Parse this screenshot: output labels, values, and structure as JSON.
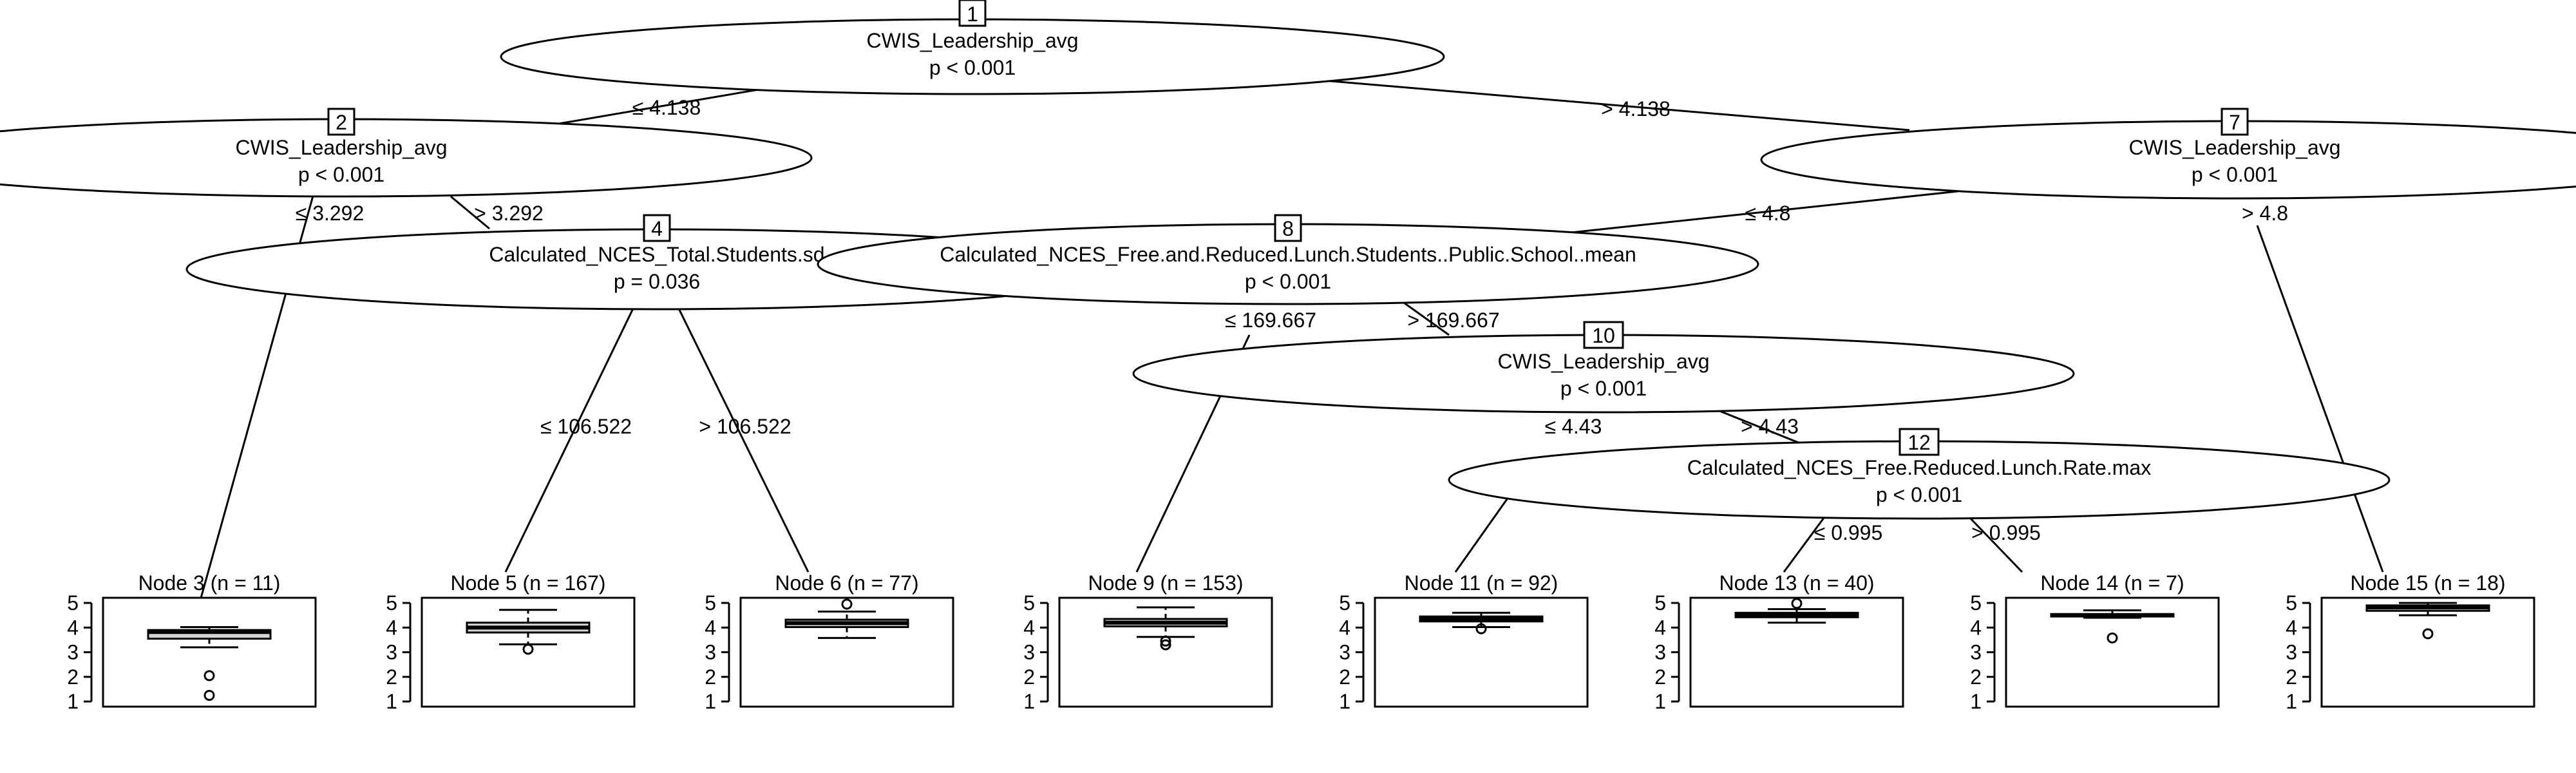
{
  "tree": {
    "nodes": [
      {
        "id": "1",
        "variable": "CWIS_Leadership_avg",
        "pvalue": "p < 0.001"
      },
      {
        "id": "2",
        "variable": "CWIS_Leadership_avg",
        "pvalue": "p < 0.001"
      },
      {
        "id": "4",
        "variable": "Calculated_NCES_Total.Students.sd",
        "pvalue": "p = 0.036"
      },
      {
        "id": "7",
        "variable": "CWIS_Leadership_avg",
        "pvalue": "p < 0.001"
      },
      {
        "id": "8",
        "variable": "Calculated_NCES_Free.and.Reduced.Lunch.Students..Public.School..mean",
        "pvalue": "p < 0.001"
      },
      {
        "id": "10",
        "variable": "CWIS_Leadership_avg",
        "pvalue": "p < 0.001"
      },
      {
        "id": "12",
        "variable": "Calculated_NCES_Free.Reduced.Lunch.Rate.max",
        "pvalue": "p < 0.001"
      }
    ],
    "edges": [
      {
        "from": "1",
        "to": "2",
        "label": "≤ 4.138"
      },
      {
        "from": "1",
        "to": "7",
        "label": "> 4.138"
      },
      {
        "from": "2",
        "to": "3",
        "label": "≤ 3.292"
      },
      {
        "from": "2",
        "to": "4",
        "label": "> 3.292"
      },
      {
        "from": "4",
        "to": "5",
        "label": "≤ 106.522"
      },
      {
        "from": "4",
        "to": "6",
        "label": "> 106.522"
      },
      {
        "from": "7",
        "to": "8",
        "label": "≤ 4.8"
      },
      {
        "from": "7",
        "to": "15",
        "label": "> 4.8"
      },
      {
        "from": "8",
        "to": "9",
        "label": "≤ 169.667"
      },
      {
        "from": "8",
        "to": "10",
        "label": "> 169.667"
      },
      {
        "from": "10",
        "to": "11",
        "label": "≤ 4.43"
      },
      {
        "from": "10",
        "to": "12",
        "label": "> 4.43"
      },
      {
        "from": "12",
        "to": "13",
        "label": "≤ 0.995"
      },
      {
        "from": "12",
        "to": "14",
        "label": "> 0.995"
      }
    ],
    "terminal_ticks": [
      "1",
      "2",
      "3",
      "4",
      "5"
    ],
    "terminals": [
      {
        "id": "3",
        "title": "Node 3 (n = 11)",
        "q1": 3.55,
        "median": 3.82,
        "q3": 3.9,
        "whisker_low": 3.2,
        "whisker_high": 4.02,
        "outliers": [
          2.05,
          1.25
        ]
      },
      {
        "id": "5",
        "title": "Node 5 (n = 167)",
        "q1": 3.8,
        "median": 4.0,
        "q3": 4.2,
        "whisker_low": 3.32,
        "whisker_high": 4.72,
        "outliers": [
          3.12
        ]
      },
      {
        "id": "6",
        "title": "Node 6 (n = 77)",
        "q1": 4.02,
        "median": 4.18,
        "q3": 4.32,
        "whisker_low": 3.58,
        "whisker_high": 4.65,
        "outliers": [
          4.95
        ]
      },
      {
        "id": "9",
        "title": "Node 9 (n = 153)",
        "q1": 4.05,
        "median": 4.2,
        "q3": 4.35,
        "whisker_low": 3.62,
        "whisker_high": 4.82,
        "outliers": [
          3.45,
          3.3
        ]
      },
      {
        "id": "11",
        "title": "Node 11 (n = 92)",
        "q1": 4.25,
        "median": 4.35,
        "q3": 4.45,
        "whisker_low": 4.02,
        "whisker_high": 4.6,
        "outliers": [
          3.95
        ]
      },
      {
        "id": "13",
        "title": "Node 13 (n = 40)",
        "q1": 4.42,
        "median": 4.52,
        "q3": 4.6,
        "whisker_low": 4.2,
        "whisker_high": 4.75,
        "outliers": [
          4.98
        ]
      },
      {
        "id": "14",
        "title": "Node 14 (n = 7)",
        "q1": 4.45,
        "median": 4.5,
        "q3": 4.55,
        "whisker_low": 4.4,
        "whisker_high": 4.7,
        "outliers": [
          3.58
        ]
      },
      {
        "id": "15",
        "title": "Node 15 (n = 18)",
        "q1": 4.68,
        "median": 4.82,
        "q3": 4.9,
        "whisker_low": 4.5,
        "whisker_high": 5.0,
        "outliers": [
          3.75
        ]
      }
    ]
  }
}
